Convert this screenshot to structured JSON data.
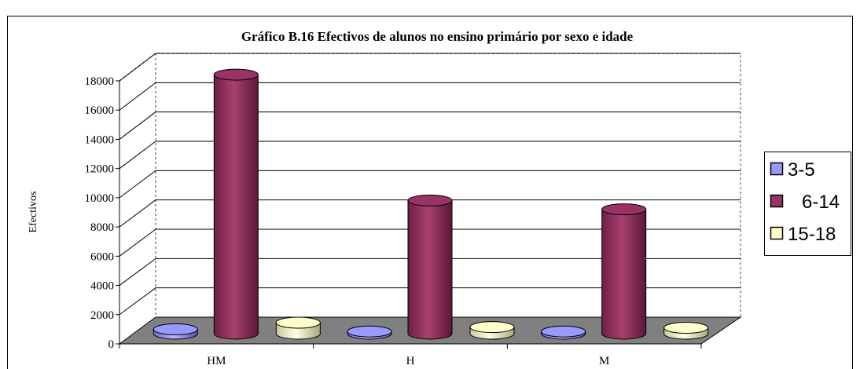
{
  "chart_data": {
    "type": "bar",
    "title": "Gráfico B.16 Efectivos de alunos no ensino primário por sexo e idade",
    "xlabel": "",
    "ylabel": "Efectivos",
    "categories": [
      "HM",
      "H",
      "M"
    ],
    "series": [
      {
        "name": "3-5",
        "values": [
          300,
          150,
          150
        ],
        "color": "#9999FF"
      },
      {
        "name": "6-14",
        "values": [
          17700,
          9100,
          8500
        ],
        "color": "#993366"
      },
      {
        "name": "15-18",
        "values": [
          750,
          450,
          400
        ],
        "color": "#FFFFCC"
      }
    ],
    "ylim": [
      0,
      18000
    ],
    "yticks": [
      0,
      2000,
      4000,
      6000,
      8000,
      10000,
      12000,
      14000,
      16000,
      18000
    ],
    "grid": true,
    "legend_position": "right",
    "floor_color": "#808080",
    "chart_style": "3d-cylinder"
  }
}
